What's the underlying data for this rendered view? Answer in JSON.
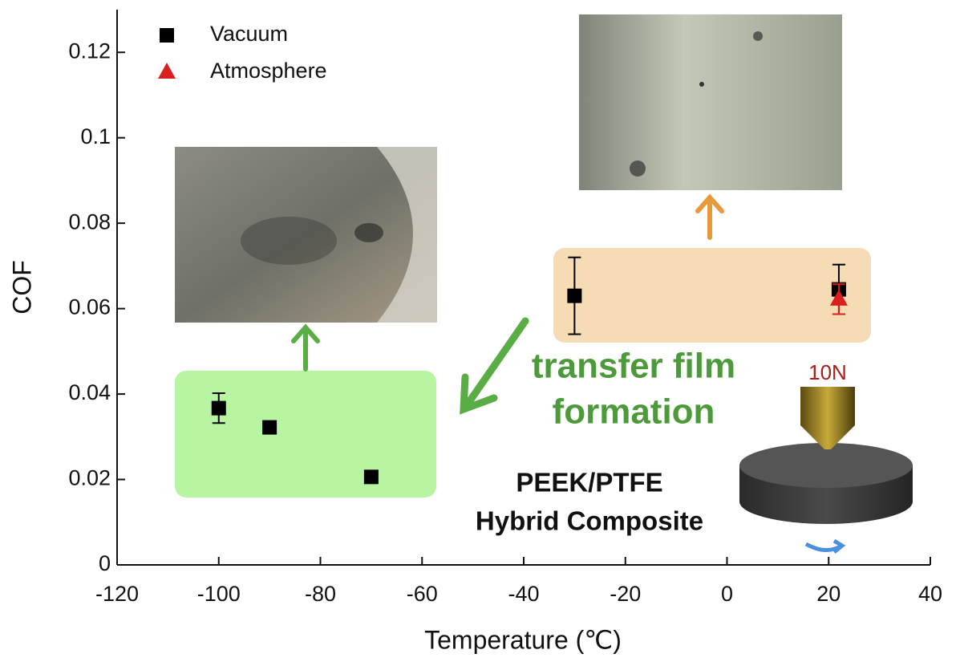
{
  "chart_data": {
    "type": "scatter",
    "xlabel": "Temperature (℃)",
    "ylabel": "COF",
    "xlim": [
      -120,
      40
    ],
    "xticks": [
      -120,
      -100,
      -80,
      -60,
      -40,
      -20,
      0,
      20,
      40
    ],
    "ylim": [
      0,
      0.13
    ],
    "yticks": [
      0,
      0.02,
      0.04,
      0.06,
      0.08,
      0.1,
      0.12
    ],
    "legend": "upper left",
    "series": [
      {
        "name": "Vacuum",
        "color": "#000000",
        "marker": "square",
        "x": [
          -100,
          -90,
          -70,
          -30,
          22
        ],
        "values": [
          0.0367,
          0.0322,
          0.0206,
          0.063,
          0.0645
        ],
        "errors": [
          0.0035,
          0.0006,
          0.0005,
          0.009,
          0.0058
        ]
      },
      {
        "name": "Atmosphere",
        "color": "#d9201e",
        "marker": "triangle",
        "x": [
          22
        ],
        "values": [
          0.0622
        ],
        "errors": [
          0.0035
        ]
      }
    ],
    "annotations": [
      "transfer film",
      "formation",
      "PEEK/PTFE",
      "Hybrid Composite",
      "10N"
    ]
  }
}
